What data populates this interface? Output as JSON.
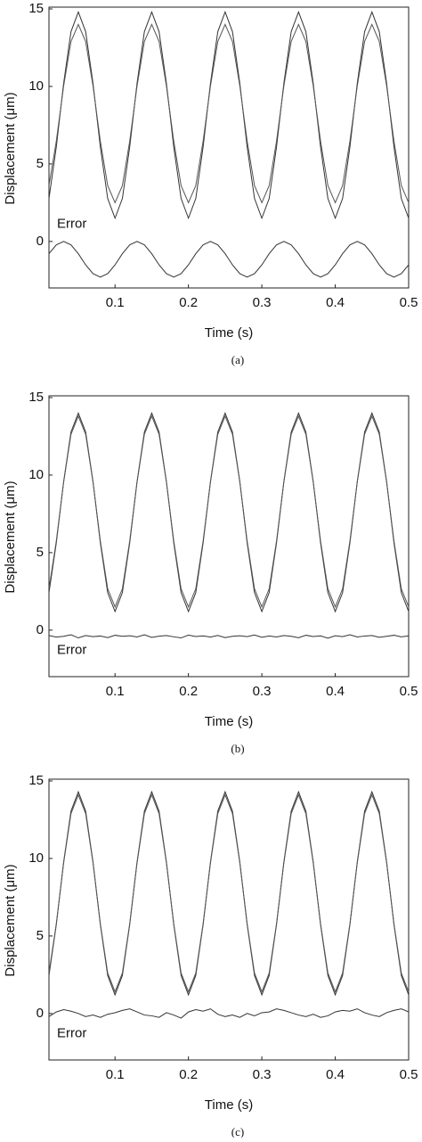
{
  "chart_data": [
    {
      "type": "line",
      "caption": "(a)",
      "x_label": "Time (s)",
      "y_label": "Displacement (μm)",
      "annotation": "Error",
      "xlim": [
        0.01,
        0.5
      ],
      "ylim": [
        -3,
        15
      ],
      "xticks": [
        0.1,
        0.2,
        0.3,
        0.4,
        0.5
      ],
      "yticks": [
        0,
        5,
        10,
        15
      ],
      "x": [
        0.01,
        0.02,
        0.03,
        0.04,
        0.05,
        0.06,
        0.07,
        0.08,
        0.09,
        0.1,
        0.11,
        0.12,
        0.13,
        0.14,
        0.15,
        0.16,
        0.17,
        0.18,
        0.19,
        0.2,
        0.21,
        0.22,
        0.23,
        0.24,
        0.25,
        0.26,
        0.27,
        0.28,
        0.29,
        0.3,
        0.31,
        0.32,
        0.33,
        0.34,
        0.35,
        0.36,
        0.37,
        0.38,
        0.39,
        0.4,
        0.41,
        0.42,
        0.43,
        0.44,
        0.45,
        0.46,
        0.47,
        0.48,
        0.49,
        0.5
      ],
      "series": [
        {
          "color": "#333333",
          "values": [
            2.77,
            6.1,
            10.2,
            13.53,
            14.8,
            13.53,
            10.2,
            6.1,
            2.77,
            1.5,
            2.77,
            6.1,
            10.2,
            13.53,
            14.8,
            13.53,
            10.2,
            6.1,
            2.77,
            1.5,
            2.77,
            6.1,
            10.2,
            13.53,
            14.8,
            13.53,
            10.2,
            6.1,
            2.77,
            1.5,
            2.77,
            6.1,
            10.2,
            13.53,
            14.8,
            13.53,
            10.2,
            6.1,
            2.77,
            1.5,
            2.77,
            6.1,
            10.2,
            13.53,
            14.8,
            13.53,
            10.2,
            6.1,
            2.77,
            1.5
          ]
        },
        {
          "color": "#555555",
          "values": [
            3.6,
            6.47,
            10.03,
            12.9,
            14.0,
            12.9,
            10.03,
            6.47,
            3.6,
            2.5,
            3.6,
            6.47,
            10.03,
            12.9,
            14.0,
            12.9,
            10.03,
            6.47,
            3.6,
            2.5,
            3.6,
            6.47,
            10.03,
            12.9,
            14.0,
            12.9,
            10.03,
            6.47,
            3.6,
            2.5,
            3.6,
            6.47,
            10.03,
            12.9,
            14.0,
            12.9,
            10.03,
            6.47,
            3.6,
            2.5,
            3.6,
            6.47,
            10.03,
            12.9,
            14.0,
            12.9,
            10.03,
            6.47,
            3.6,
            2.5
          ]
        },
        {
          "color": "#333333",
          "values": [
            -0.79,
            -0.22,
            0,
            -0.22,
            -0.79,
            -1.51,
            -2.08,
            -2.3,
            -2.08,
            -1.51,
            -0.79,
            -0.22,
            0,
            -0.22,
            -0.79,
            -1.51,
            -2.08,
            -2.3,
            -2.08,
            -1.51,
            -0.79,
            -0.22,
            0,
            -0.22,
            -0.79,
            -1.51,
            -2.08,
            -2.3,
            -2.08,
            -1.51,
            -0.79,
            -0.22,
            0,
            -0.22,
            -0.79,
            -1.51,
            -2.08,
            -2.3,
            -2.08,
            -1.51,
            -0.79,
            -0.22,
            0,
            -0.22,
            -0.79,
            -1.51,
            -2.08,
            -2.3,
            -2.08,
            -1.51
          ]
        }
      ]
    },
    {
      "type": "line",
      "caption": "(b)",
      "x_label": "Time (s)",
      "y_label": "Displacement (μm)",
      "annotation": "Error",
      "xlim": [
        0.01,
        0.5
      ],
      "ylim": [
        -3,
        15
      ],
      "xticks": [
        0.1,
        0.2,
        0.3,
        0.4,
        0.5
      ],
      "yticks": [
        0,
        5,
        10,
        15
      ],
      "x": [
        0.01,
        0.02,
        0.03,
        0.04,
        0.05,
        0.06,
        0.07,
        0.08,
        0.09,
        0.1,
        0.11,
        0.12,
        0.13,
        0.14,
        0.15,
        0.16,
        0.17,
        0.18,
        0.19,
        0.2,
        0.21,
        0.22,
        0.23,
        0.24,
        0.25,
        0.26,
        0.27,
        0.28,
        0.29,
        0.3,
        0.31,
        0.32,
        0.33,
        0.34,
        0.35,
        0.36,
        0.37,
        0.38,
        0.39,
        0.4,
        0.41,
        0.42,
        0.43,
        0.44,
        0.45,
        0.46,
        0.47,
        0.48,
        0.49,
        0.5
      ],
      "series": [
        {
          "color": "#333333",
          "values": [
            2.42,
            5.62,
            9.58,
            12.78,
            14.0,
            12.78,
            9.58,
            5.62,
            2.42,
            1.2,
            2.42,
            5.62,
            9.58,
            12.78,
            14.0,
            12.78,
            9.58,
            5.62,
            2.42,
            1.2,
            2.42,
            5.62,
            9.58,
            12.78,
            14.0,
            12.78,
            9.58,
            5.62,
            2.42,
            1.2,
            2.42,
            5.62,
            9.58,
            12.78,
            14.0,
            12.78,
            9.58,
            5.62,
            2.42,
            1.2,
            2.42,
            5.62,
            9.58,
            12.78,
            14.0,
            12.78,
            9.58,
            5.62,
            2.42,
            1.2
          ]
        },
        {
          "color": "#555555",
          "values": [
            2.67,
            5.75,
            9.55,
            12.63,
            13.8,
            12.63,
            9.55,
            5.75,
            2.67,
            1.5,
            2.67,
            5.75,
            9.55,
            12.63,
            13.8,
            12.63,
            9.55,
            5.75,
            2.67,
            1.5,
            2.67,
            5.75,
            9.55,
            12.63,
            13.8,
            12.63,
            9.55,
            5.75,
            2.67,
            1.5,
            2.67,
            5.75,
            9.55,
            12.63,
            13.8,
            12.63,
            9.55,
            5.75,
            2.67,
            1.5,
            2.67,
            5.75,
            9.55,
            12.63,
            13.8,
            12.63,
            9.55,
            5.75,
            2.67,
            1.5
          ]
        },
        {
          "color": "#333333",
          "values": [
            -0.35,
            -0.45,
            -0.4,
            -0.3,
            -0.5,
            -0.35,
            -0.42,
            -0.38,
            -0.48,
            -0.33,
            -0.4,
            -0.36,
            -0.44,
            -0.3,
            -0.47,
            -0.39,
            -0.35,
            -0.43,
            -0.5,
            -0.32,
            -0.41,
            -0.37,
            -0.45,
            -0.34,
            -0.48,
            -0.4,
            -0.36,
            -0.42,
            -0.31,
            -0.46,
            -0.38,
            -0.44,
            -0.35,
            -0.4,
            -0.49,
            -0.33,
            -0.41,
            -0.37,
            -0.52,
            -0.36,
            -0.42,
            -0.3,
            -0.44,
            -0.38,
            -0.35,
            -0.46,
            -0.4,
            -0.33,
            -0.43,
            -0.37
          ]
        }
      ]
    },
    {
      "type": "line",
      "caption": "(c)",
      "x_label": "Time (s)",
      "y_label": "Displacement (μm)",
      "annotation": "Error",
      "xlim": [
        0.01,
        0.5
      ],
      "ylim": [
        -3,
        15
      ],
      "xticks": [
        0.1,
        0.2,
        0.3,
        0.4,
        0.5
      ],
      "yticks": [
        0,
        5,
        10,
        15
      ],
      "x": [
        0.01,
        0.02,
        0.03,
        0.04,
        0.05,
        0.06,
        0.07,
        0.08,
        0.09,
        0.1,
        0.11,
        0.12,
        0.13,
        0.14,
        0.15,
        0.16,
        0.17,
        0.18,
        0.19,
        0.2,
        0.21,
        0.22,
        0.23,
        0.24,
        0.25,
        0.26,
        0.27,
        0.28,
        0.29,
        0.3,
        0.31,
        0.32,
        0.33,
        0.34,
        0.35,
        0.36,
        0.37,
        0.38,
        0.39,
        0.4,
        0.41,
        0.42,
        0.43,
        0.44,
        0.45,
        0.46,
        0.47,
        0.48,
        0.49,
        0.5
      ],
      "series": [
        {
          "color": "#333333",
          "values": [
            2.45,
            5.73,
            9.77,
            13.05,
            14.3,
            13.05,
            9.77,
            5.73,
            2.45,
            1.2,
            2.45,
            5.73,
            9.77,
            13.05,
            14.3,
            13.05,
            9.77,
            5.73,
            2.45,
            1.2,
            2.45,
            5.73,
            9.77,
            13.05,
            14.3,
            13.05,
            9.77,
            5.73,
            2.45,
            1.2,
            2.45,
            5.73,
            9.77,
            13.05,
            14.3,
            13.05,
            9.77,
            5.73,
            2.45,
            1.2,
            2.45,
            5.73,
            9.77,
            13.05,
            14.3,
            13.05,
            9.77,
            5.73,
            2.45,
            1.2
          ]
        },
        {
          "color": "#555555",
          "values": [
            2.61,
            5.79,
            9.71,
            12.89,
            14.1,
            12.89,
            9.71,
            5.79,
            2.61,
            1.4,
            2.61,
            5.79,
            9.71,
            12.89,
            14.1,
            12.89,
            9.71,
            5.79,
            2.61,
            1.4,
            2.61,
            5.79,
            9.71,
            12.89,
            14.1,
            12.89,
            9.71,
            5.79,
            2.61,
            1.4,
            2.61,
            5.79,
            9.71,
            12.89,
            14.1,
            12.89,
            9.71,
            5.79,
            2.61,
            1.4,
            2.61,
            5.79,
            9.71,
            12.89,
            14.1,
            12.89,
            9.71,
            5.79,
            2.61,
            1.4
          ]
        },
        {
          "color": "#333333",
          "values": [
            -0.2,
            0.1,
            0.25,
            0.15,
            0,
            -0.2,
            -0.1,
            -0.25,
            -0.05,
            0.05,
            0.2,
            0.3,
            0.1,
            -0.1,
            -0.15,
            -0.25,
            0.05,
            -0.1,
            -0.3,
            0.1,
            0.25,
            0.15,
            0.3,
            -0.05,
            -0.2,
            -0.1,
            -0.25,
            0,
            -0.15,
            0.05,
            0.1,
            0.3,
            0.2,
            0.05,
            -0.1,
            -0.2,
            -0.05,
            -0.25,
            -0.15,
            0.1,
            0.2,
            0.15,
            0.3,
            0.05,
            -0.1,
            -0.2,
            0.05,
            0.2,
            0.3,
            0.1
          ]
        }
      ]
    }
  ]
}
